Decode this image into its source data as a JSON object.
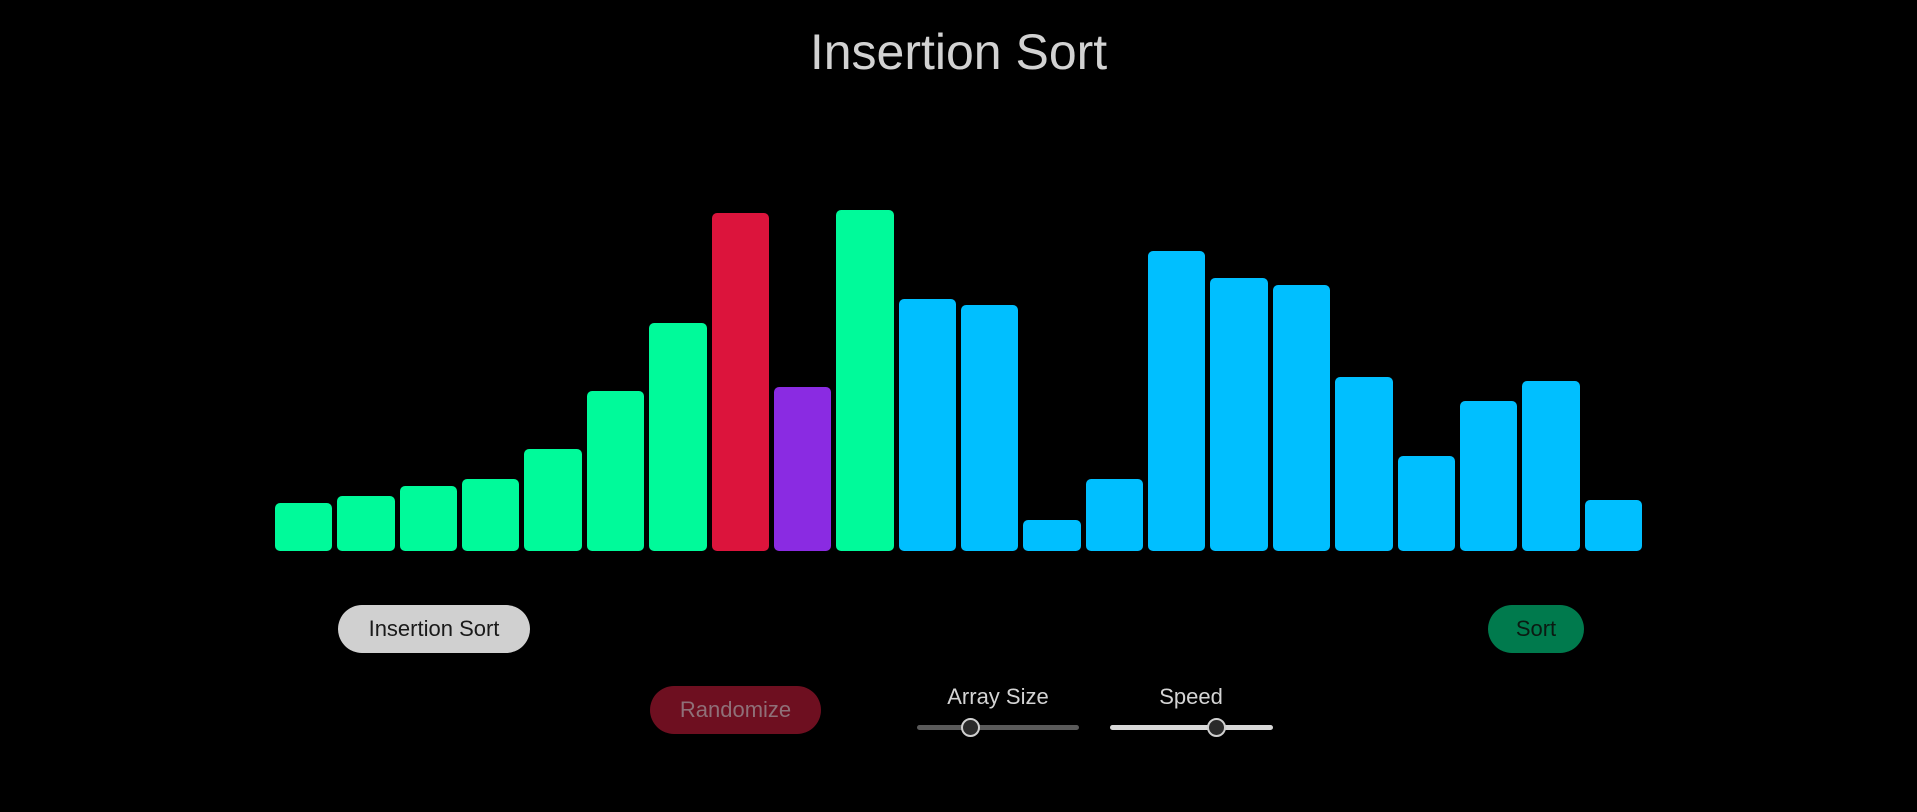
{
  "header": {
    "title": "Insertion Sort"
  },
  "colors": {
    "sorted": "#00fa9a",
    "compare": "#dc143c",
    "current": "#8a2be2",
    "unsorted": "#00bfff"
  },
  "bars": [
    {
      "value": 14,
      "state": "sorted"
    },
    {
      "value": 16,
      "state": "sorted"
    },
    {
      "value": 19,
      "state": "sorted"
    },
    {
      "value": 21,
      "state": "sorted"
    },
    {
      "value": 30,
      "state": "sorted"
    },
    {
      "value": 47,
      "state": "sorted"
    },
    {
      "value": 67,
      "state": "sorted"
    },
    {
      "value": 99,
      "state": "compare"
    },
    {
      "value": 48,
      "state": "current"
    },
    {
      "value": 100,
      "state": "sorted"
    },
    {
      "value": 74,
      "state": "unsorted"
    },
    {
      "value": 72,
      "state": "unsorted"
    },
    {
      "value": 9,
      "state": "unsorted"
    },
    {
      "value": 21,
      "state": "unsorted"
    },
    {
      "value": 88,
      "state": "unsorted"
    },
    {
      "value": 80,
      "state": "unsorted"
    },
    {
      "value": 78,
      "state": "unsorted"
    },
    {
      "value": 51,
      "state": "unsorted"
    },
    {
      "value": 28,
      "state": "unsorted"
    },
    {
      "value": 44,
      "state": "unsorted"
    },
    {
      "value": 50,
      "state": "unsorted"
    },
    {
      "value": 15,
      "state": "unsorted"
    }
  ],
  "controls": {
    "algorithm_label": "Insertion Sort",
    "sort_label": "Sort",
    "randomize_label": "Randomize",
    "array_size_label": "Array Size",
    "speed_label": "Speed",
    "array_size_fraction": 0.33,
    "speed_fraction": 0.65
  }
}
